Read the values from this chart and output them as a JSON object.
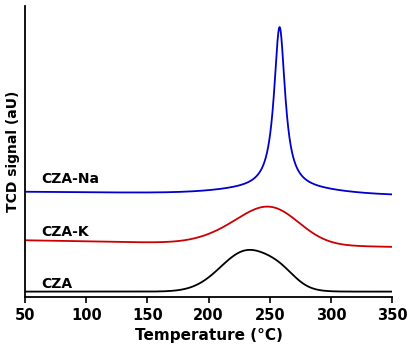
{
  "xlabel": "Temperature (°C)",
  "ylabel": "TCD signal (aU)",
  "xlim": [
    50,
    350
  ],
  "xticks": [
    50,
    100,
    150,
    200,
    250,
    300,
    350
  ],
  "colors": {
    "CZA": "#000000",
    "CZA-K": "#cc0000",
    "CZA-Na": "#0000cc"
  },
  "labels": {
    "CZA": "CZA",
    "CZA-K": "CZA-K",
    "CZA-Na": "CZA-Na"
  },
  "figsize": [
    4.13,
    3.49
  ],
  "dpi": 100
}
